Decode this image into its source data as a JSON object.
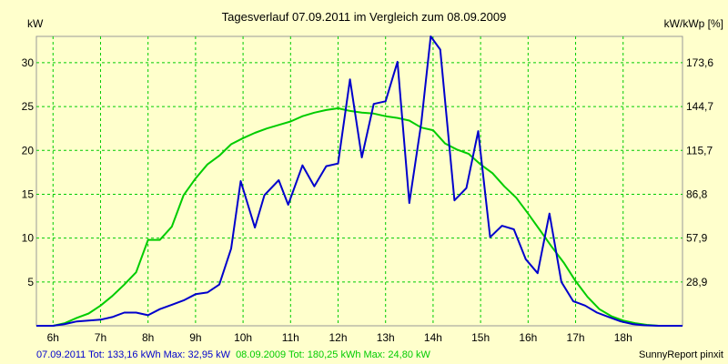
{
  "chart_data": {
    "type": "line",
    "title": "Tagesverlauf 07.09.2011 im Vergleich zum 08.09.2009",
    "ylabel": "kW",
    "y2label": "kW/kWp [%]",
    "ylim": [
      0,
      33
    ],
    "y_ticks": [
      5,
      10,
      15,
      20,
      25,
      30
    ],
    "y2_ticks": [
      "28,9",
      "57,9",
      "86,8",
      "115,7",
      "144,7",
      "173,6"
    ],
    "x_ticks": [
      {
        "label": "6h",
        "t": 6
      },
      {
        "label": "7h",
        "t": 7
      },
      {
        "label": "8h",
        "t": 8
      },
      {
        "label": "9h",
        "t": 9
      },
      {
        "label": "10h",
        "t": 10
      },
      {
        "label": "11h",
        "t": 11
      },
      {
        "label": "12h",
        "t": 12
      },
      {
        "label": "13h",
        "t": 13
      },
      {
        "label": "14h",
        "t": 14
      },
      {
        "label": "15h",
        "t": 15
      },
      {
        "label": "16h",
        "t": 16
      },
      {
        "label": "17h",
        "t": 17
      },
      {
        "label": "18h",
        "t": 18
      }
    ],
    "xlim": [
      5.65,
      19.25
    ],
    "grid": true,
    "series": [
      {
        "name": "07.09.2011",
        "color": "#0000cc",
        "points": [
          [
            5.65,
            0
          ],
          [
            6.0,
            0
          ],
          [
            6.25,
            0.2
          ],
          [
            6.5,
            0.5
          ],
          [
            6.75,
            0.6
          ],
          [
            7.0,
            0.7
          ],
          [
            7.25,
            1.0
          ],
          [
            7.5,
            1.5
          ],
          [
            7.75,
            1.5
          ],
          [
            8.0,
            1.2
          ],
          [
            8.25,
            1.9
          ],
          [
            8.5,
            2.4
          ],
          [
            8.75,
            2.9
          ],
          [
            9.0,
            3.6
          ],
          [
            9.25,
            3.8
          ],
          [
            9.5,
            4.7
          ],
          [
            9.75,
            8.8
          ],
          [
            9.95,
            16.5
          ],
          [
            10.25,
            11.2
          ],
          [
            10.45,
            14.9
          ],
          [
            10.75,
            16.6
          ],
          [
            10.95,
            13.8
          ],
          [
            11.25,
            18.3
          ],
          [
            11.5,
            15.9
          ],
          [
            11.75,
            18.2
          ],
          [
            12.0,
            18.5
          ],
          [
            12.25,
            28.1
          ],
          [
            12.5,
            19.2
          ],
          [
            12.75,
            25.3
          ],
          [
            13.0,
            25.6
          ],
          [
            13.25,
            30.1
          ],
          [
            13.5,
            14.0
          ],
          [
            13.75,
            23.1
          ],
          [
            13.95,
            33.0
          ],
          [
            14.15,
            31.5
          ],
          [
            14.45,
            14.3
          ],
          [
            14.7,
            15.7
          ],
          [
            14.95,
            22.2
          ],
          [
            15.2,
            10.1
          ],
          [
            15.45,
            11.4
          ],
          [
            15.7,
            11.0
          ],
          [
            15.95,
            7.6
          ],
          [
            16.2,
            6.0
          ],
          [
            16.45,
            12.8
          ],
          [
            16.7,
            5.0
          ],
          [
            16.95,
            2.8
          ],
          [
            17.2,
            2.3
          ],
          [
            17.45,
            1.5
          ],
          [
            17.7,
            1.0
          ],
          [
            17.95,
            0.5
          ],
          [
            18.2,
            0.2
          ],
          [
            18.45,
            0.05
          ],
          [
            18.75,
            0
          ],
          [
            19.25,
            0
          ]
        ]
      },
      {
        "name": "08.09.2009",
        "color": "#00cc00",
        "points": [
          [
            5.65,
            0
          ],
          [
            6.0,
            0
          ],
          [
            6.25,
            0.3
          ],
          [
            6.5,
            0.9
          ],
          [
            6.75,
            1.4
          ],
          [
            7.0,
            2.3
          ],
          [
            7.25,
            3.4
          ],
          [
            7.5,
            4.7
          ],
          [
            7.75,
            6.1
          ],
          [
            8.0,
            9.8
          ],
          [
            8.25,
            9.8
          ],
          [
            8.5,
            11.3
          ],
          [
            8.75,
            14.9
          ],
          [
            9.0,
            16.8
          ],
          [
            9.25,
            18.4
          ],
          [
            9.5,
            19.4
          ],
          [
            9.75,
            20.7
          ],
          [
            10.0,
            21.4
          ],
          [
            10.25,
            22.0
          ],
          [
            10.5,
            22.5
          ],
          [
            10.75,
            22.9
          ],
          [
            11.0,
            23.3
          ],
          [
            11.25,
            23.9
          ],
          [
            11.5,
            24.3
          ],
          [
            11.75,
            24.6
          ],
          [
            12.0,
            24.8
          ],
          [
            12.25,
            24.5
          ],
          [
            12.5,
            24.3
          ],
          [
            12.75,
            24.2
          ],
          [
            13.0,
            23.9
          ],
          [
            13.25,
            23.7
          ],
          [
            13.5,
            23.4
          ],
          [
            13.75,
            22.6
          ],
          [
            14.0,
            22.3
          ],
          [
            14.25,
            20.8
          ],
          [
            14.5,
            20.1
          ],
          [
            14.75,
            19.6
          ],
          [
            15.0,
            18.4
          ],
          [
            15.25,
            17.4
          ],
          [
            15.5,
            15.9
          ],
          [
            15.75,
            14.6
          ],
          [
            16.0,
            12.8
          ],
          [
            16.25,
            10.9
          ],
          [
            16.5,
            9.0
          ],
          [
            16.75,
            7.2
          ],
          [
            17.0,
            5.1
          ],
          [
            17.25,
            3.3
          ],
          [
            17.5,
            1.9
          ],
          [
            17.75,
            1.1
          ],
          [
            18.0,
            0.6
          ],
          [
            18.25,
            0.3
          ],
          [
            18.5,
            0.1
          ],
          [
            18.75,
            0
          ],
          [
            19.25,
            0
          ]
        ]
      }
    ]
  },
  "footer": {
    "series1_text": "07.09.2011 Tot: 133,16 kWh Max: 32,95 kW",
    "series2_text": "08.09.2009 Tot: 180,25 kWh Max: 24,80 kW",
    "credit": "SunnyReport pinxit",
    "series1_color": "#0000cc",
    "series2_color": "#00cc00"
  }
}
